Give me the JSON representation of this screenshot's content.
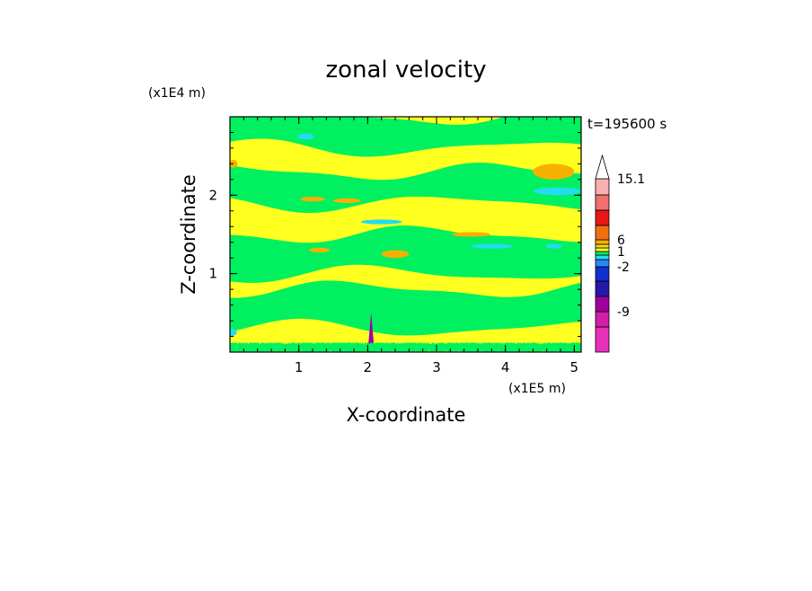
{
  "chart_data": {
    "type": "heatmap",
    "title": "zonal velocity",
    "xlabel": "X-coordinate",
    "ylabel": "Z-coordinate",
    "x_unit_label": "(x1E5 m)",
    "y_unit_label": "(x1E4 m)",
    "time_label": "t=195600 s",
    "xlim": [
      0,
      5.1
    ],
    "ylim": [
      0,
      3.0
    ],
    "x_ticks": [
      "1",
      "2",
      "3",
      "4",
      "5"
    ],
    "y_ticks": [
      "1",
      "2"
    ],
    "grid": false,
    "colorbar": {
      "placement": "right",
      "tick_labels": [
        "15.1",
        "6",
        "1",
        "-2",
        "-9"
      ],
      "levels": [
        {
          "value": -15,
          "color": "#e830b8"
        },
        {
          "value": -12,
          "color": "#d020a8"
        },
        {
          "value": -9,
          "color": "#a000a0"
        },
        {
          "value": -6,
          "color": "#2818a8"
        },
        {
          "value": -4,
          "color": "#1030d0"
        },
        {
          "value": -2,
          "color": "#2888f8"
        },
        {
          "value": -1,
          "color": "#22dcf0"
        },
        {
          "value": 0,
          "color": "#00f060"
        },
        {
          "value": 1,
          "color": "#ffff20"
        },
        {
          "value": 2,
          "color": "#f8d820"
        },
        {
          "value": 3,
          "color": "#f8b000"
        },
        {
          "value": 6,
          "color": "#f07010"
        },
        {
          "value": 9,
          "color": "#e81818"
        },
        {
          "value": 12,
          "color": "#f07070"
        },
        {
          "value": 15.1,
          "color": "#f8b0b0"
        }
      ]
    },
    "fields": {
      "background": "#ffff20",
      "regions": [
        {
          "name": "top band",
          "value": 0,
          "x": [
            0,
            5.1
          ],
          "z": [
            2.6,
            3.0
          ]
        },
        {
          "name": "upper band",
          "value": 0,
          "x": [
            0,
            5.1
          ],
          "z": [
            1.9,
            2.3
          ]
        },
        {
          "name": "middle band",
          "value": 0,
          "x": [
            0,
            5.1
          ],
          "z": [
            1.0,
            1.5
          ]
        },
        {
          "name": "lower band",
          "value": 0,
          "x": [
            0,
            5.1
          ],
          "z": [
            0.3,
            0.8
          ]
        },
        {
          "name": "upper positive patch",
          "value": 3,
          "x": [
            4.4,
            5.0
          ],
          "z": [
            2.2,
            2.4
          ]
        },
        {
          "name": "middle positive patch",
          "value": 3,
          "x": [
            2.2,
            2.6
          ],
          "z": [
            1.2,
            1.3
          ]
        },
        {
          "name": "upper negative patch",
          "value": -1,
          "x": [
            4.4,
            5.1
          ],
          "z": [
            2.0,
            2.1
          ]
        },
        {
          "name": "surface jet core",
          "value": -9,
          "x": [
            2.0,
            2.1
          ],
          "z": [
            0.0,
            0.5
          ]
        }
      ]
    }
  },
  "colors": {
    "background": "#ffffff",
    "axis": "#000000"
  }
}
